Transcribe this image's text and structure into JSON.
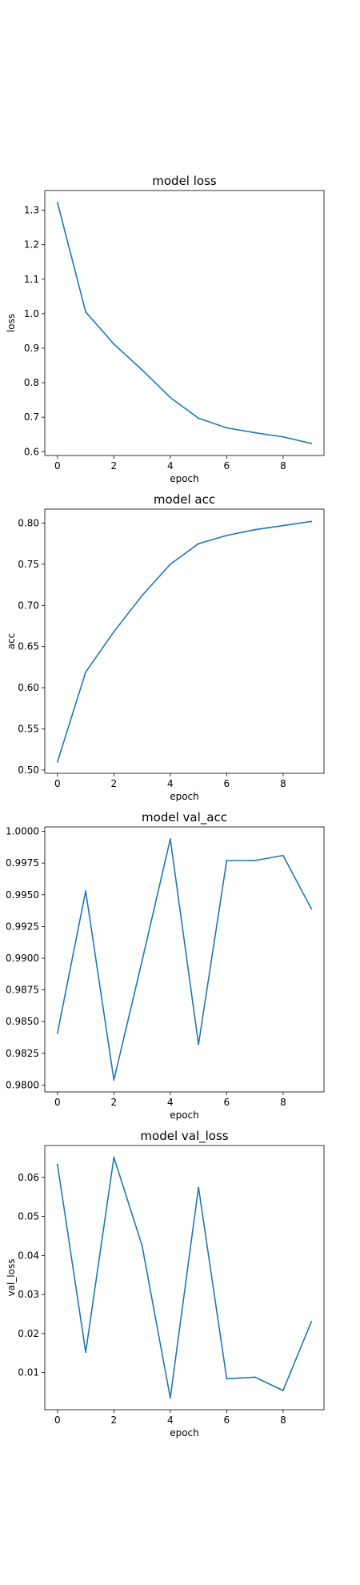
{
  "chart_data": [
    {
      "type": "line",
      "title": "model loss",
      "xlabel": "epoch",
      "ylabel": "loss",
      "x": [
        0,
        1,
        2,
        3,
        4,
        5,
        6,
        7,
        8,
        9
      ],
      "series": [
        {
          "values": [
            1.322,
            1.005,
            0.912,
            0.837,
            0.757,
            0.697,
            0.669,
            0.655,
            0.643,
            0.624
          ],
          "color": "#1f77b4"
        }
      ],
      "xlim": [
        -0.45,
        9.45
      ],
      "ylim": [
        0.589,
        1.357
      ],
      "xticks": [
        0,
        2,
        4,
        6,
        8
      ],
      "xtick_labels": [
        "0",
        "2",
        "4",
        "6",
        "8"
      ],
      "yticks": [
        0.6,
        0.7,
        0.8,
        0.9,
        1.0,
        1.1,
        1.2,
        1.3
      ],
      "ytick_labels": [
        "0.6",
        "0.7",
        "0.8",
        "0.9",
        "1.0",
        "1.1",
        "1.2",
        "1.3"
      ],
      "grid": false,
      "legend": false
    },
    {
      "type": "line",
      "title": "model acc",
      "xlabel": "epoch",
      "ylabel": "acc",
      "x": [
        0,
        1,
        2,
        3,
        4,
        5,
        6,
        7,
        8,
        9
      ],
      "series": [
        {
          "values": [
            0.51,
            0.619,
            0.668,
            0.712,
            0.75,
            0.775,
            0.785,
            0.792,
            0.797,
            0.802
          ],
          "color": "#1f77b4"
        }
      ],
      "xlim": [
        -0.45,
        9.45
      ],
      "ylim": [
        0.496,
        0.817
      ],
      "xticks": [
        0,
        2,
        4,
        6,
        8
      ],
      "xtick_labels": [
        "0",
        "2",
        "4",
        "6",
        "8"
      ],
      "yticks": [
        0.5,
        0.55,
        0.6,
        0.65,
        0.7,
        0.75,
        0.8
      ],
      "ytick_labels": [
        "0.50",
        "0.55",
        "0.60",
        "0.65",
        "0.70",
        "0.75",
        "0.80"
      ],
      "grid": false,
      "legend": false
    },
    {
      "type": "line",
      "title": "model val_acc",
      "xlabel": "epoch",
      "ylabel": "",
      "x": [
        0,
        1,
        2,
        3,
        4,
        5,
        6,
        7,
        8,
        9
      ],
      "series": [
        {
          "values": [
            0.9841,
            0.9953,
            0.9804,
            0.9898,
            0.9994,
            0.9832,
            0.9977,
            0.9977,
            0.9981,
            0.9939
          ],
          "color": "#1f77b4"
        }
      ],
      "xlim": [
        -0.45,
        9.45
      ],
      "ylim": [
        0.97946,
        1.00035
      ],
      "xticks": [
        0,
        2,
        4,
        6,
        8
      ],
      "xtick_labels": [
        "0",
        "2",
        "4",
        "6",
        "8"
      ],
      "yticks": [
        0.98,
        0.9825,
        0.985,
        0.9875,
        0.99,
        0.9925,
        0.995,
        0.9975,
        1.0
      ],
      "ytick_labels": [
        "0.9800",
        "0.9825",
        "0.9850",
        "0.9875",
        "0.9900",
        "0.9925",
        "0.9950",
        "0.9975",
        "1.0000"
      ],
      "grid": false,
      "legend": false
    },
    {
      "type": "line",
      "title": "model val_loss",
      "xlabel": "epoch",
      "ylabel": "val_loss",
      "x": [
        0,
        1,
        2,
        3,
        4,
        5,
        6,
        7,
        8,
        9
      ],
      "series": [
        {
          "values": [
            0.0633,
            0.0152,
            0.0652,
            0.0425,
            0.0035,
            0.0575,
            0.0084,
            0.0088,
            0.0054,
            0.023
          ],
          "color": "#1f77b4"
        }
      ],
      "xlim": [
        -0.45,
        9.45
      ],
      "ylim": [
        0.00047,
        0.06819
      ],
      "xticks": [
        0,
        2,
        4,
        6,
        8
      ],
      "xtick_labels": [
        "0",
        "2",
        "4",
        "6",
        "8"
      ],
      "yticks": [
        0.01,
        0.02,
        0.03,
        0.04,
        0.05,
        0.06
      ],
      "ytick_labels": [
        "0.01",
        "0.02",
        "0.03",
        "0.04",
        "0.05",
        "0.06"
      ],
      "grid": false,
      "legend": false
    }
  ]
}
